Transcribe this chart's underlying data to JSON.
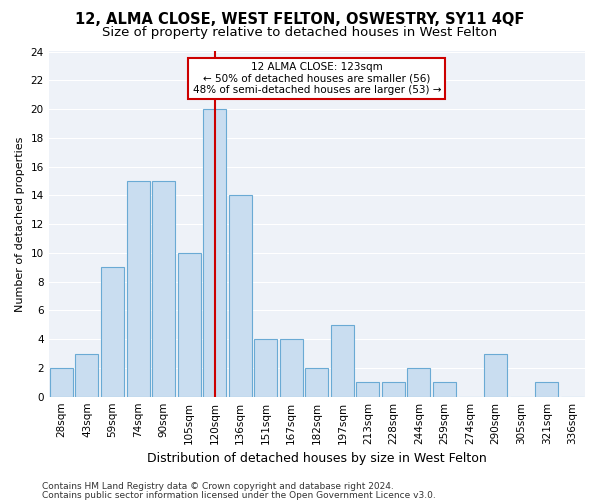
{
  "title": "12, ALMA CLOSE, WEST FELTON, OSWESTRY, SY11 4QF",
  "subtitle": "Size of property relative to detached houses in West Felton",
  "xlabel": "Distribution of detached houses by size in West Felton",
  "ylabel": "Number of detached properties",
  "categories": [
    "28sqm",
    "43sqm",
    "59sqm",
    "74sqm",
    "90sqm",
    "105sqm",
    "120sqm",
    "136sqm",
    "151sqm",
    "167sqm",
    "182sqm",
    "197sqm",
    "213sqm",
    "228sqm",
    "244sqm",
    "259sqm",
    "274sqm",
    "290sqm",
    "305sqm",
    "321sqm",
    "336sqm"
  ],
  "values": [
    2,
    3,
    9,
    15,
    15,
    10,
    20,
    14,
    4,
    4,
    2,
    5,
    1,
    1,
    2,
    1,
    0,
    3,
    0,
    1,
    0
  ],
  "bar_color": "#c9ddf0",
  "bar_edge_color": "#6aaad4",
  "highlight_index": 6,
  "highlight_line_color": "#cc0000",
  "annotation_line1": "12 ALMA CLOSE: 123sqm",
  "annotation_line2": "← 50% of detached houses are smaller (56)",
  "annotation_line3": "48% of semi-detached houses are larger (53) →",
  "annotation_box_color": "#ffffff",
  "annotation_box_edge": "#cc0000",
  "ylim": [
    0,
    24
  ],
  "yticks": [
    0,
    2,
    4,
    6,
    8,
    10,
    12,
    14,
    16,
    18,
    20,
    22,
    24
  ],
  "footer1": "Contains HM Land Registry data © Crown copyright and database right 2024.",
  "footer2": "Contains public sector information licensed under the Open Government Licence v3.0.",
  "fig_bg_color": "#ffffff",
  "plot_bg_color": "#eef2f8",
  "grid_color": "#ffffff",
  "title_fontsize": 10.5,
  "subtitle_fontsize": 9.5,
  "xlabel_fontsize": 9,
  "ylabel_fontsize": 8,
  "tick_fontsize": 7.5,
  "annot_fontsize": 7.5,
  "footer_fontsize": 6.5
}
